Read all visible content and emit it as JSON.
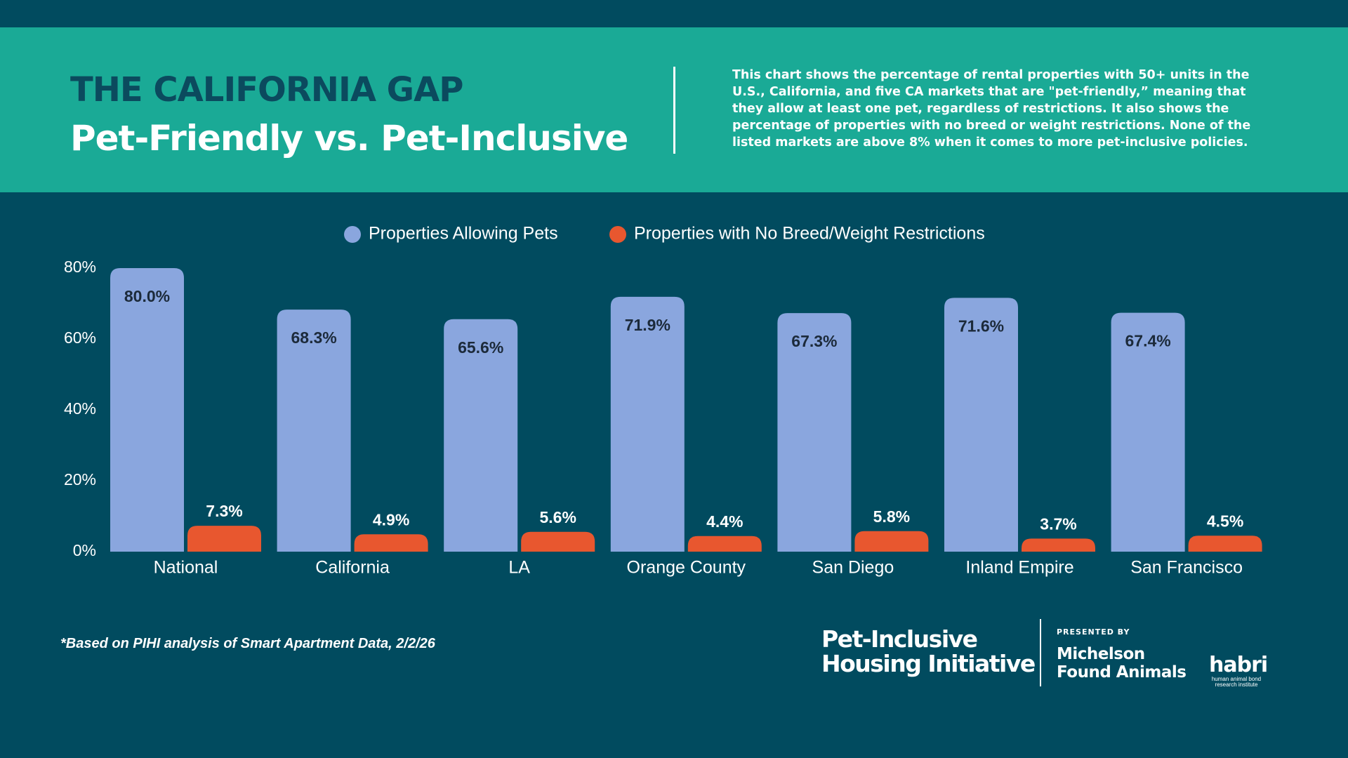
{
  "header": {
    "title": "THE CALIFORNIA GAP",
    "subtitle": "Pet-Friendly vs. Pet-Inclusive",
    "description": "This chart shows the percentage of rental properties with 50+ units in the U.S., California, and five CA markets that are \"pet-friendly,” meaning that they allow at least one pet, regardless of restrictions. It also shows the percentage of properties with no breed or weight restrictions. None of the listed markets are above 8% when it comes to more pet-inclusive policies."
  },
  "chart_data": {
    "type": "bar",
    "categories": [
      "National",
      "California",
      "LA",
      "Orange County",
      "San Diego",
      "Inland Empire",
      "San Francisco"
    ],
    "series": [
      {
        "name": "Properties Allowing Pets",
        "color": "#8aa6de",
        "values": [
          80.0,
          68.3,
          65.6,
          71.9,
          67.3,
          71.6,
          67.4
        ],
        "value_labels": [
          "80.0%",
          "68.3%",
          "65.6%",
          "71.9%",
          "67.3%",
          "71.6%",
          "67.4%"
        ]
      },
      {
        "name": "Properties with No Breed/Weight Restrictions",
        "color": "#e8572f",
        "values": [
          7.3,
          4.9,
          5.6,
          4.4,
          5.8,
          3.7,
          4.5
        ],
        "value_labels": [
          "7.3%",
          "4.9%",
          "5.6%",
          "4.4%",
          "5.8%",
          "3.7%",
          "4.5%"
        ]
      }
    ],
    "ylim": [
      0,
      80
    ],
    "yticks": [
      {
        "value": 0,
        "label": "0%"
      },
      {
        "value": 20,
        "label": "20%"
      },
      {
        "value": 40,
        "label": "40%"
      },
      {
        "value": 60,
        "label": "60%"
      },
      {
        "value": 80,
        "label": "80%"
      }
    ],
    "grid": false,
    "legend": "top"
  },
  "footer": {
    "note": "*Based on PIHI analysis of Smart Apartment Data, 2/2/26",
    "pihi": [
      "Pet-Inclusive",
      "Housing Initiative"
    ],
    "presented_by": "PRESENTED BY",
    "mfa": [
      "Michelson",
      "Found Animals"
    ],
    "habri": "habri",
    "habri_sub": [
      "human animal bond",
      "research institute"
    ]
  }
}
